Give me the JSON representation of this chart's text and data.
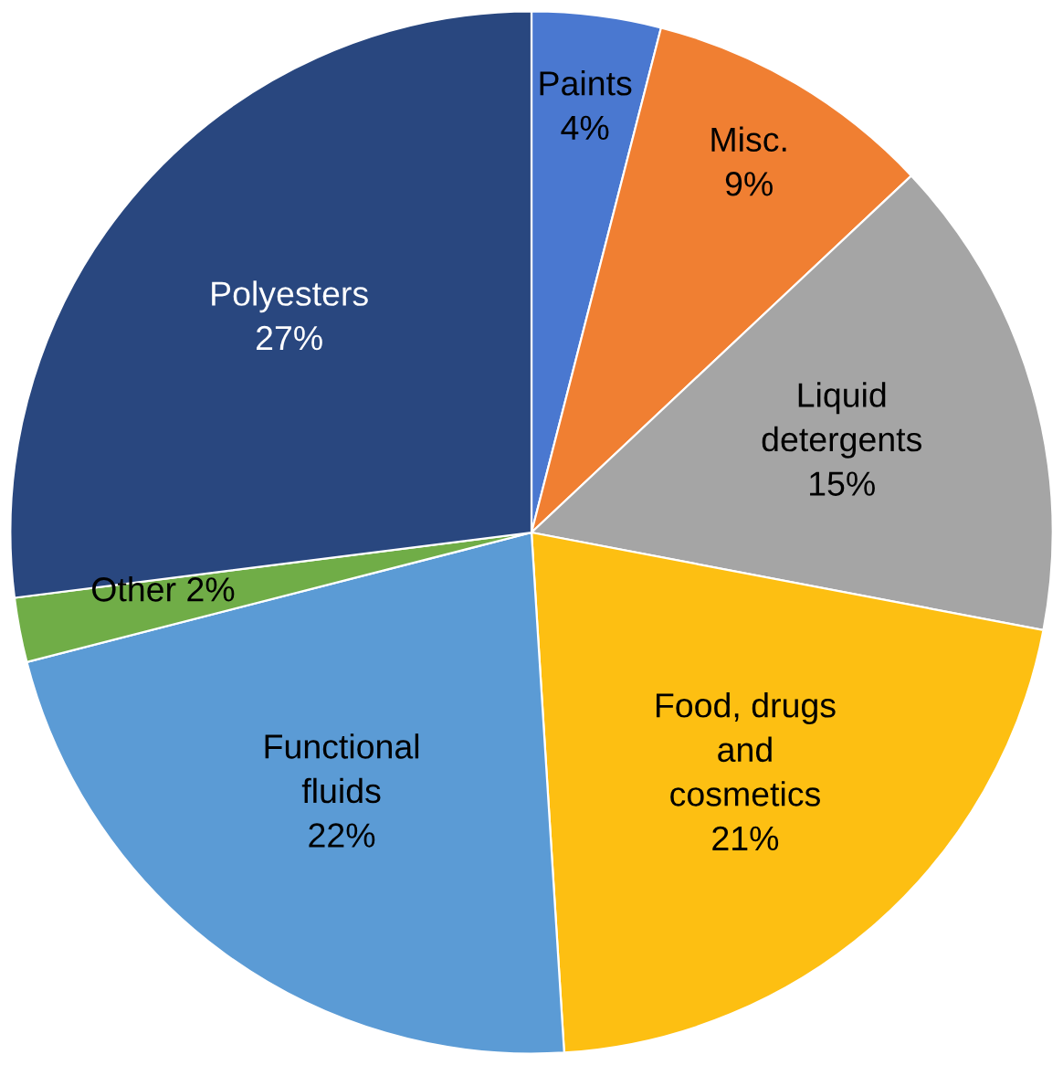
{
  "chart_data": {
    "type": "pie",
    "categories": [
      "Paints",
      "Misc.",
      "Liquid\ndetergents",
      "Food, drugs\nand\ncosmetics",
      "Functional\nfluids",
      "Other",
      "Polyesters"
    ],
    "values": [
      4,
      9,
      15,
      21,
      22,
      2,
      27
    ],
    "value_labels": [
      "4%",
      "9%",
      "15%",
      "21%",
      "22%",
      "2%",
      "27%"
    ],
    "colors": [
      "#4a78d0",
      "#f07f32",
      "#a5a5a5",
      "#fdbf12",
      "#5b9bd5",
      "#70ad47",
      "#29477f"
    ],
    "legend": false
  }
}
